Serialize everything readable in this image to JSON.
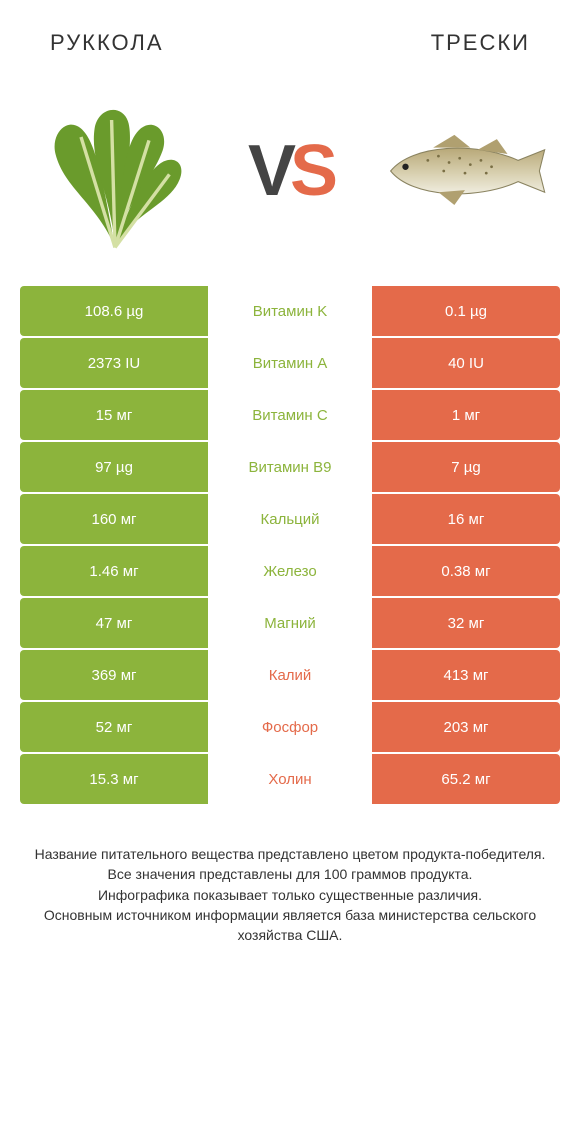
{
  "colors": {
    "left": "#8cb43c",
    "right": "#e46a4a",
    "vs_v": "#444444",
    "vs_s": "#e46a4a"
  },
  "fonts": {
    "title_size": 22,
    "cell_size": 15,
    "vs_size": 72,
    "footnote_size": 14
  },
  "header": {
    "left_title": "РУККОЛА",
    "right_title": "ТРЕСКИ",
    "vs_v": "V",
    "vs_s": "S"
  },
  "rows": [
    {
      "left": "108.6 µg",
      "label": "Витамин K",
      "right": "0.1 µg",
      "winner": "left"
    },
    {
      "left": "2373 IU",
      "label": "Витамин A",
      "right": "40 IU",
      "winner": "left"
    },
    {
      "left": "15 мг",
      "label": "Витамин C",
      "right": "1 мг",
      "winner": "left"
    },
    {
      "left": "97 µg",
      "label": "Витамин B9",
      "right": "7 µg",
      "winner": "left"
    },
    {
      "left": "160 мг",
      "label": "Кальций",
      "right": "16 мг",
      "winner": "left"
    },
    {
      "left": "1.46 мг",
      "label": "Железо",
      "right": "0.38 мг",
      "winner": "left"
    },
    {
      "left": "47 мг",
      "label": "Магний",
      "right": "32 мг",
      "winner": "left"
    },
    {
      "left": "369 мг",
      "label": "Калий",
      "right": "413 мг",
      "winner": "right"
    },
    {
      "left": "52 мг",
      "label": "Фосфор",
      "right": "203 мг",
      "winner": "right"
    },
    {
      "left": "15.3 мг",
      "label": "Холин",
      "right": "65.2 мг",
      "winner": "right"
    }
  ],
  "footnote": {
    "l1": "Название питательного вещества представлено цветом продукта-победителя.",
    "l2": "Все значения представлены для 100 граммов продукта.",
    "l3": "Инфографика показывает только существенные различия.",
    "l4": "Основным источником информации является база министерства сельского хозяйства США."
  }
}
